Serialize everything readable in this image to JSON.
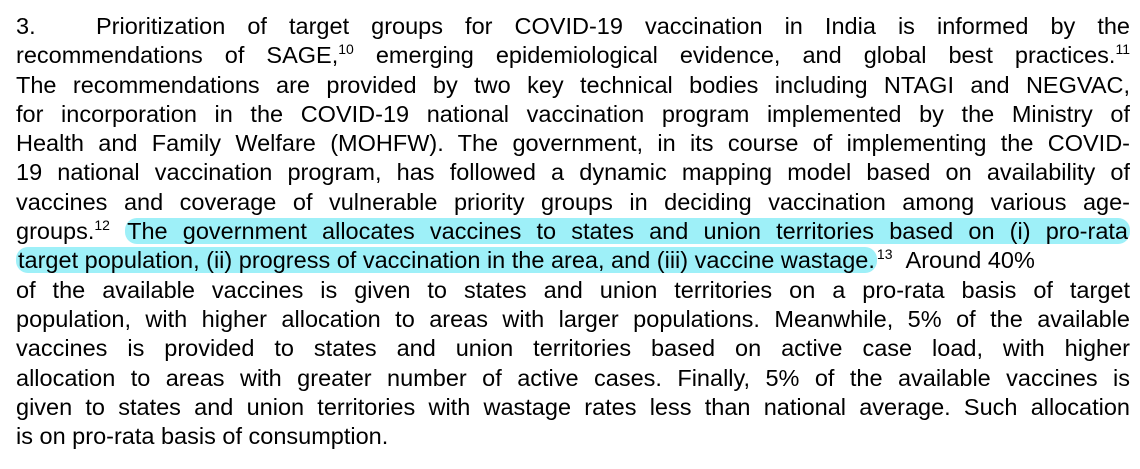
{
  "paragraph": {
    "number": "3.",
    "lines": [
      {
        "text": "Prioritization of target groups for COVID-19 vaccination in India is informed by the"
      },
      {
        "text_a": "recommendations of SAGE,",
        "sup_a": "10",
        "text_b": " emerging epidemiological evidence, and global best practices.",
        "sup_b": "11"
      },
      {
        "text": "The recommendations are provided by two key technical bodies including NTAGI and NEGVAC,"
      },
      {
        "text": "for incorporation in the COVID-19 national vaccination program implemented by the Ministry of"
      },
      {
        "text": "Health and Family Welfare (MOHFW). The government, in its course of implementing the COVID-"
      },
      {
        "text": "19 national vaccination program, has followed a dynamic mapping model based on availability of"
      },
      {
        "text": "vaccines and coverage of vulnerable priority groups in deciding vaccination among various age-"
      },
      {
        "text_a": "groups.",
        "sup_a": "12",
        "highlight": "The government allocates vaccines to states and union territories based on (i) pro-rata"
      },
      {
        "highlight": "target population, (ii) progress of vaccination in the area, and (iii) vaccine wastage.",
        "sup_a": "13",
        "text_b": "Around 40%"
      },
      {
        "text": "of the available vaccines is given to states and union territories on a pro-rata basis of target"
      },
      {
        "text": "population, with higher allocation to areas with larger populations. Meanwhile, 5% of the available"
      },
      {
        "text": "vaccines is provided to states and union territories based on active case load, with higher"
      },
      {
        "text": "allocation to areas with greater number of active cases. Finally, 5% of the available vaccines is"
      },
      {
        "text": "given to states and union territories with wastage rates less than national average. Such allocation"
      },
      {
        "text": "is on pro-rata basis of consumption."
      }
    ]
  },
  "colors": {
    "highlight": "#9ef0f8",
    "text": "#000000"
  }
}
